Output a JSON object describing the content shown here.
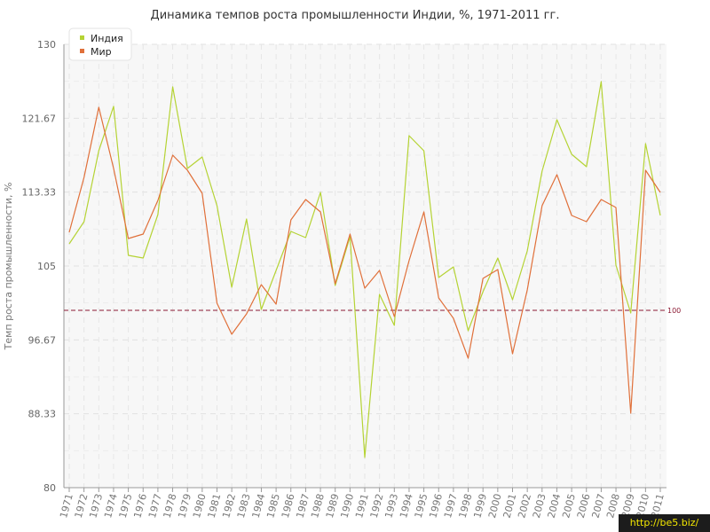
{
  "chart_data": {
    "type": "line",
    "title": "Динамика темпов роста промышленности Индии, %, 1971-2011 гг.",
    "xlabel": "",
    "ylabel": "Темп роста промышленности, %",
    "ylim": [
      80,
      130
    ],
    "yticks": [
      "130",
      "121.67",
      "113.33",
      "105",
      "96.67",
      "88.33",
      "80"
    ],
    "x": [
      "1971",
      "1972",
      "1973",
      "1974",
      "1975",
      "1976",
      "1977",
      "1978",
      "1979",
      "1980",
      "1981",
      "1982",
      "1983",
      "1984",
      "1985",
      "1986",
      "1987",
      "1988",
      "1989",
      "1990",
      "1991",
      "1992",
      "1993",
      "1994",
      "1995",
      "1996",
      "1997",
      "1998",
      "1999",
      "2000",
      "2001",
      "2002",
      "2003",
      "2004",
      "2005",
      "2006",
      "2007",
      "2008",
      "2009",
      "2010",
      "2011"
    ],
    "series": [
      {
        "name": "Индия",
        "color": "#b5d334",
        "values": [
          107.5,
          110,
          118,
          123,
          106.2,
          105.9,
          110.8,
          125.2,
          116,
          117.3,
          111.8,
          102.6,
          110.3,
          100.1,
          104.5,
          108.9,
          108.2,
          113.3,
          102.8,
          108.3,
          83.4,
          101.8,
          98.3,
          119.7,
          118,
          103.7,
          104.9,
          97.7,
          102.1,
          105.9,
          101.2,
          106.7,
          115.7,
          121.5,
          117.6,
          116.2,
          125.8,
          105.1,
          99.7,
          118.8,
          110.7
        ]
      },
      {
        "name": "Мир",
        "color": "#e0703a",
        "values": [
          108.8,
          115,
          122.9,
          116,
          108.1,
          108.6,
          112.4,
          117.5,
          115.8,
          113.2,
          100.8,
          97.3,
          99.6,
          102.9,
          100.7,
          110.2,
          112.5,
          111.1,
          103,
          108.6,
          102.5,
          104.5,
          99.3,
          105.6,
          111.1,
          101.4,
          99.1,
          94.6,
          103.6,
          104.6,
          95.1,
          102.3,
          111.8,
          115.3,
          110.7,
          110,
          112.5,
          111.6,
          88.4,
          115.8,
          113.3
        ]
      }
    ],
    "reference_line": {
      "value": 100,
      "label": "100",
      "color": "#8b1a33"
    },
    "grid": true,
    "legend_position": "top-left"
  },
  "watermark": "http://be5.biz/"
}
